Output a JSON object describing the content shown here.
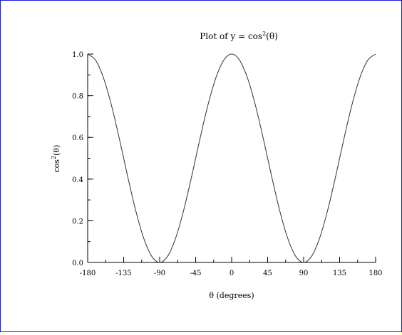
{
  "chart_data": {
    "type": "line",
    "title_parts": {
      "main": "Plot of y = cos",
      "sup": "2",
      "tail": "(θ)"
    },
    "xlabel": "θ (degrees)",
    "ylabel_parts": {
      "main": "cos",
      "sup": "2",
      "tail": "(θ)"
    },
    "xlim": [
      -180,
      180
    ],
    "ylim": [
      0,
      1
    ],
    "x_ticks": [
      -180,
      -135,
      -90,
      -45,
      0,
      45,
      90,
      135,
      180
    ],
    "x_tick_labels": [
      "-180",
      "-135",
      "-90",
      "-45",
      "0",
      "45",
      "90",
      "135",
      "180"
    ],
    "y_ticks": [
      0,
      0.2,
      0.4,
      0.6,
      0.8,
      1
    ],
    "y_tick_labels": [
      "0.0",
      "0.2",
      "0.4",
      "0.6",
      "0.8",
      "1.0"
    ],
    "y_minor_step": 0.1,
    "x_minor_step": 22.5,
    "grid": false,
    "line_color": "#333333",
    "series": [
      {
        "x": [
          -180,
          -170,
          -160,
          -150,
          -140,
          -130,
          -120,
          -110,
          -100,
          -90,
          -80,
          -70,
          -60,
          -50,
          -40,
          -30,
          -20,
          -10,
          0,
          10,
          20,
          30,
          40,
          50,
          60,
          70,
          80,
          90,
          100,
          110,
          120,
          130,
          140,
          150,
          160,
          170,
          180
        ],
        "y": [
          1,
          0.97,
          0.883,
          0.75,
          0.587,
          0.413,
          0.25,
          0.117,
          0.03,
          0,
          0.03,
          0.117,
          0.25,
          0.413,
          0.587,
          0.75,
          0.883,
          0.97,
          1,
          0.97,
          0.883,
          0.75,
          0.587,
          0.413,
          0.25,
          0.117,
          0.03,
          0,
          0.03,
          0.117,
          0.25,
          0.413,
          0.587,
          0.75,
          0.883,
          0.97,
          1
        ]
      }
    ]
  },
  "colors": {
    "frame_border": "#1a1ad8",
    "axes": "#000000",
    "curve": "#333333"
  }
}
